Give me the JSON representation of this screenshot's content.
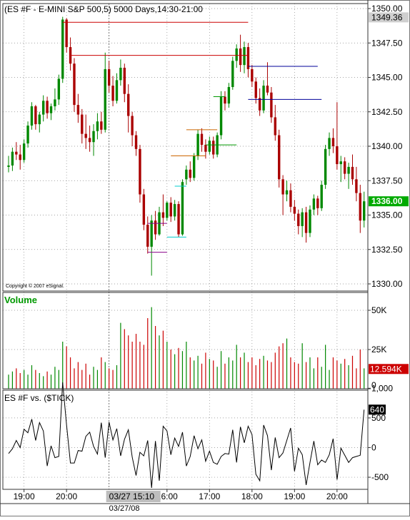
{
  "chart_data": [
    {
      "type": "candlestick",
      "title": "(ES #F - E-MINI S&P 500,5) 5000 Days,14:30-21:00",
      "copyright": "Copyright © 2007 eSignal.",
      "ylim": [
        1330,
        1350
      ],
      "yticks": [
        "1350.00",
        "1347.50",
        "1345.00",
        "1342.50",
        "1340.00",
        "1337.50",
        "1335.00",
        "1332.50",
        "1330.00"
      ],
      "ytick_values": [
        1350,
        1347.5,
        1345,
        1342.5,
        1340,
        1337.5,
        1335,
        1332.5,
        1330
      ],
      "high_label": "1349.36",
      "high_value": 1349.36,
      "last_label": "1336.00",
      "last_value": 1336.0,
      "bars": [
        [
          1338.5,
          1339.3,
          1338.1,
          1338.6
        ],
        [
          1338.6,
          1339.9,
          1338.2,
          1339.6
        ],
        [
          1339.6,
          1340.3,
          1339.0,
          1339.4
        ],
        [
          1339.4,
          1340.1,
          1338.3,
          1339.0
        ],
        [
          1339.0,
          1340.5,
          1338.8,
          1340.2
        ],
        [
          1340.2,
          1341.8,
          1339.9,
          1341.5
        ],
        [
          1341.5,
          1343.2,
          1341.2,
          1342.9
        ],
        [
          1342.9,
          1343.0,
          1341.2,
          1341.6
        ],
        [
          1341.6,
          1342.5,
          1341.0,
          1342.3
        ],
        [
          1342.3,
          1343.7,
          1341.8,
          1343.3
        ],
        [
          1343.3,
          1343.6,
          1342.0,
          1342.4
        ],
        [
          1342.4,
          1343.1,
          1341.9,
          1342.9
        ],
        [
          1342.9,
          1344.2,
          1342.6,
          1343.4
        ],
        [
          1343.4,
          1345.2,
          1343.0,
          1344.9
        ],
        [
          1344.9,
          1349.4,
          1344.6,
          1349.2
        ],
        [
          1349.2,
          1349.3,
          1346.8,
          1347.2
        ],
        [
          1347.2,
          1347.9,
          1345.5,
          1346.0
        ],
        [
          1346.0,
          1346.4,
          1342.5,
          1343.0
        ],
        [
          1343.0,
          1343.8,
          1341.7,
          1342.3
        ],
        [
          1342.3,
          1342.7,
          1340.2,
          1340.9
        ],
        [
          1340.9,
          1342.3,
          1339.8,
          1340.6
        ],
        [
          1340.6,
          1341.5,
          1339.6,
          1340.3
        ],
        [
          1340.3,
          1341.6,
          1339.3,
          1341.1
        ],
        [
          1341.1,
          1342.4,
          1340.5,
          1341.8
        ],
        [
          1341.8,
          1342.5,
          1340.9,
          1341.2
        ],
        [
          1341.2,
          1346.8,
          1341.0,
          1345.6
        ],
        [
          1345.6,
          1346.2,
          1343.9,
          1344.4
        ],
        [
          1344.4,
          1345.1,
          1342.9,
          1343.3
        ],
        [
          1343.3,
          1345.3,
          1343.1,
          1344.8
        ],
        [
          1344.8,
          1346.3,
          1344.4,
          1345.7
        ],
        [
          1345.7,
          1346.0,
          1343.2,
          1343.8
        ],
        [
          1343.8,
          1344.5,
          1341.0,
          1342.2
        ],
        [
          1342.2,
          1342.5,
          1340.0,
          1340.8
        ],
        [
          1340.8,
          1341.1,
          1339.3,
          1339.8
        ],
        [
          1339.8,
          1340.1,
          1335.9,
          1336.5
        ],
        [
          1336.5,
          1336.9,
          1333.9,
          1334.3
        ],
        [
          1334.3,
          1334.9,
          1332.2,
          1332.7
        ],
        [
          1332.7,
          1335.0,
          1330.6,
          1334.6
        ],
        [
          1334.6,
          1335.3,
          1333.2,
          1333.6
        ],
        [
          1333.6,
          1335.6,
          1333.5,
          1335.2
        ],
        [
          1335.2,
          1336.5,
          1334.2,
          1334.8
        ],
        [
          1334.8,
          1336.0,
          1334.6,
          1335.9
        ],
        [
          1335.9,
          1336.3,
          1334.5,
          1334.9
        ],
        [
          1334.9,
          1336.1,
          1334.6,
          1335.8
        ],
        [
          1335.8,
          1336.0,
          1333.4,
          1333.6
        ],
        [
          1333.6,
          1337.6,
          1333.5,
          1337.4
        ],
        [
          1337.6,
          1338.6,
          1337.2,
          1338.3
        ],
        [
          1338.3,
          1338.9,
          1337.4,
          1337.7
        ],
        [
          1337.7,
          1339.5,
          1337.5,
          1339.3
        ],
        [
          1339.3,
          1341.2,
          1339.0,
          1340.9
        ],
        [
          1340.9,
          1341.3,
          1339.6,
          1340.1
        ],
        [
          1340.1,
          1340.5,
          1339.1,
          1339.6
        ],
        [
          1339.6,
          1340.7,
          1339.4,
          1340.4
        ],
        [
          1340.4,
          1340.7,
          1339.1,
          1339.4
        ],
        [
          1339.4,
          1341.0,
          1339.2,
          1340.8
        ],
        [
          1340.8,
          1344.0,
          1340.5,
          1343.6
        ],
        [
          1343.6,
          1344.0,
          1342.6,
          1343.1
        ],
        [
          1343.1,
          1344.6,
          1342.8,
          1344.3
        ],
        [
          1344.3,
          1346.5,
          1344.1,
          1346.2
        ],
        [
          1346.2,
          1347.4,
          1345.7,
          1347.1
        ],
        [
          1347.1,
          1348.1,
          1345.4,
          1345.9
        ],
        [
          1345.9,
          1347.6,
          1345.3,
          1347.2
        ],
        [
          1347.2,
          1347.5,
          1345.0,
          1345.6
        ],
        [
          1345.6,
          1345.9,
          1344.3,
          1344.7
        ],
        [
          1344.7,
          1345.0,
          1343.1,
          1343.5
        ],
        [
          1343.5,
          1344.2,
          1342.2,
          1342.6
        ],
        [
          1342.6,
          1344.8,
          1342.4,
          1344.4
        ],
        [
          1344.4,
          1346.1,
          1343.7,
          1343.9
        ],
        [
          1343.9,
          1344.3,
          1341.7,
          1342.1
        ],
        [
          1342.1,
          1343.0,
          1340.4,
          1340.8
        ],
        [
          1340.8,
          1341.2,
          1337.0,
          1337.6
        ],
        [
          1337.6,
          1337.9,
          1335.0,
          1336.5
        ],
        [
          1336.5,
          1337.5,
          1336.0,
          1336.8
        ],
        [
          1336.8,
          1337.3,
          1335.2,
          1335.6
        ],
        [
          1335.6,
          1336.1,
          1334.6,
          1335.1
        ],
        [
          1335.1,
          1335.4,
          1333.6,
          1334.2
        ],
        [
          1334.2,
          1335.5,
          1333.4,
          1335.2
        ],
        [
          1335.2,
          1335.6,
          1333.0,
          1333.7
        ],
        [
          1333.7,
          1335.7,
          1333.4,
          1335.4
        ],
        [
          1335.4,
          1336.5,
          1335.0,
          1336.2
        ],
        [
          1336.2,
          1336.4,
          1335.0,
          1335.5
        ],
        [
          1335.5,
          1337.5,
          1335.3,
          1337.2
        ],
        [
          1337.2,
          1340.1,
          1336.9,
          1339.8
        ],
        [
          1339.8,
          1341.0,
          1339.3,
          1340.6
        ],
        [
          1340.6,
          1341.3,
          1339.5,
          1340.0
        ],
        [
          1340.0,
          1343.2,
          1338.3,
          1338.7
        ],
        [
          1338.7,
          1339.3,
          1337.4,
          1338.9
        ],
        [
          1338.9,
          1339.2,
          1337.6,
          1338.0
        ],
        [
          1338.0,
          1338.8,
          1336.9,
          1338.5
        ],
        [
          1338.5,
          1339.4,
          1337.2,
          1337.6
        ],
        [
          1337.6,
          1338.5,
          1336.0,
          1336.6
        ],
        [
          1336.6,
          1337.2,
          1333.7,
          1334.6
        ],
        [
          1334.6,
          1336.7,
          1334.1,
          1336.0
        ]
      ],
      "levels": [
        {
          "price": 1349.0,
          "from": 14,
          "to": 62,
          "color": "#cc0000"
        },
        {
          "price": 1346.6,
          "from": 16,
          "to": 62,
          "color": "#cc0000"
        },
        {
          "price": 1345.8,
          "from": 62,
          "to": 80,
          "color": "#000099"
        },
        {
          "price": 1343.4,
          "from": 62,
          "to": 81,
          "color": "#000099"
        },
        {
          "price": 1343.6,
          "from": 53,
          "to": 56,
          "color": "#009900"
        },
        {
          "price": 1340.1,
          "from": 51,
          "to": 59,
          "color": "#009900"
        },
        {
          "price": 1341.2,
          "from": 46,
          "to": 54,
          "color": "#cc6600"
        },
        {
          "price": 1339.3,
          "from": 42,
          "to": 51,
          "color": "#cc6600"
        },
        {
          "price": 1337.1,
          "from": 43,
          "to": 46,
          "color": "#00cccc"
        },
        {
          "price": 1333.4,
          "from": 41,
          "to": 46,
          "color": "#00cccc"
        },
        {
          "price": 1334.4,
          "from": 36,
          "to": 41,
          "color": "#880088"
        },
        {
          "price": 1332.3,
          "from": 36,
          "to": 41,
          "color": "#880088"
        }
      ]
    },
    {
      "type": "bar",
      "title": "Volume",
      "ylim": [
        0,
        60
      ],
      "yticks": [
        "50K",
        "25K",
        "0"
      ],
      "ytick_values": [
        50,
        25,
        0
      ],
      "last_label": "12.594K",
      "last_value": 12.594,
      "values": [
        9,
        11,
        13,
        10,
        12,
        9,
        15,
        12,
        10,
        8,
        11,
        9,
        14,
        12,
        30,
        27,
        20,
        13,
        17,
        12,
        16,
        9,
        14,
        12,
        20,
        17,
        13,
        12,
        15,
        42,
        38,
        34,
        30,
        35,
        30,
        28,
        45,
        52,
        40,
        34,
        37,
        30,
        25,
        22,
        26,
        24,
        30,
        20,
        18,
        21,
        16,
        23,
        19,
        18,
        14,
        24,
        16,
        20,
        18,
        28,
        20,
        23,
        17,
        20,
        15,
        19,
        21,
        18,
        17,
        23,
        27,
        29,
        32,
        20,
        17,
        16,
        29,
        17,
        20,
        13,
        20,
        14,
        28,
        12,
        20,
        18,
        16,
        19,
        15,
        21,
        13,
        25,
        13
      ],
      "series_colors": {
        "up": "#008800",
        "down": "#cc0000"
      }
    },
    {
      "type": "line",
      "title": "ES #F vs. ($TICK)",
      "ylim": [
        -800,
        1100
      ],
      "yticks": [
        "1,000",
        "500",
        "0",
        "-500"
      ],
      "ytick_values": [
        1000,
        500,
        0,
        -500
      ],
      "last_label": "640",
      "last_value": 640,
      "values": [
        -100,
        -20,
        120,
        0,
        310,
        250,
        480,
        120,
        420,
        280,
        -310,
        30,
        -170,
        -150,
        1100,
        380,
        -260,
        -260,
        -50,
        -60,
        190,
        260,
        20,
        -110,
        420,
        -170,
        430,
        130,
        320,
        -140,
        140,
        300,
        -160,
        -470,
        -80,
        -140,
        120,
        -680,
        110,
        -560,
        360,
        280,
        -120,
        160,
        20,
        260,
        -310,
        -150,
        200,
        -20,
        130,
        -230,
        -60,
        -250,
        -280,
        -150,
        -100,
        -110,
        300,
        -250,
        350,
        80,
        360,
        220,
        -450,
        -560,
        380,
        200,
        -380,
        170,
        -170,
        -90,
        120,
        330,
        -400,
        -10,
        -120,
        -630,
        -250,
        110,
        -290,
        -210,
        -250,
        -120,
        150,
        -540,
        -10,
        -130,
        -250,
        -170,
        -150,
        -130,
        640
      ],
      "line_color": "#000000"
    }
  ],
  "x_axis": {
    "labels": [
      "19:00",
      "20:00",
      "16:00",
      "17:00",
      "18:00",
      "19:00",
      "20:00"
    ],
    "label_bars": [
      4,
      15,
      41,
      52,
      63,
      74,
      85
    ],
    "highlight_label": "03/27 15:10",
    "highlight_bar": 26,
    "date_label": "03/27/08"
  }
}
